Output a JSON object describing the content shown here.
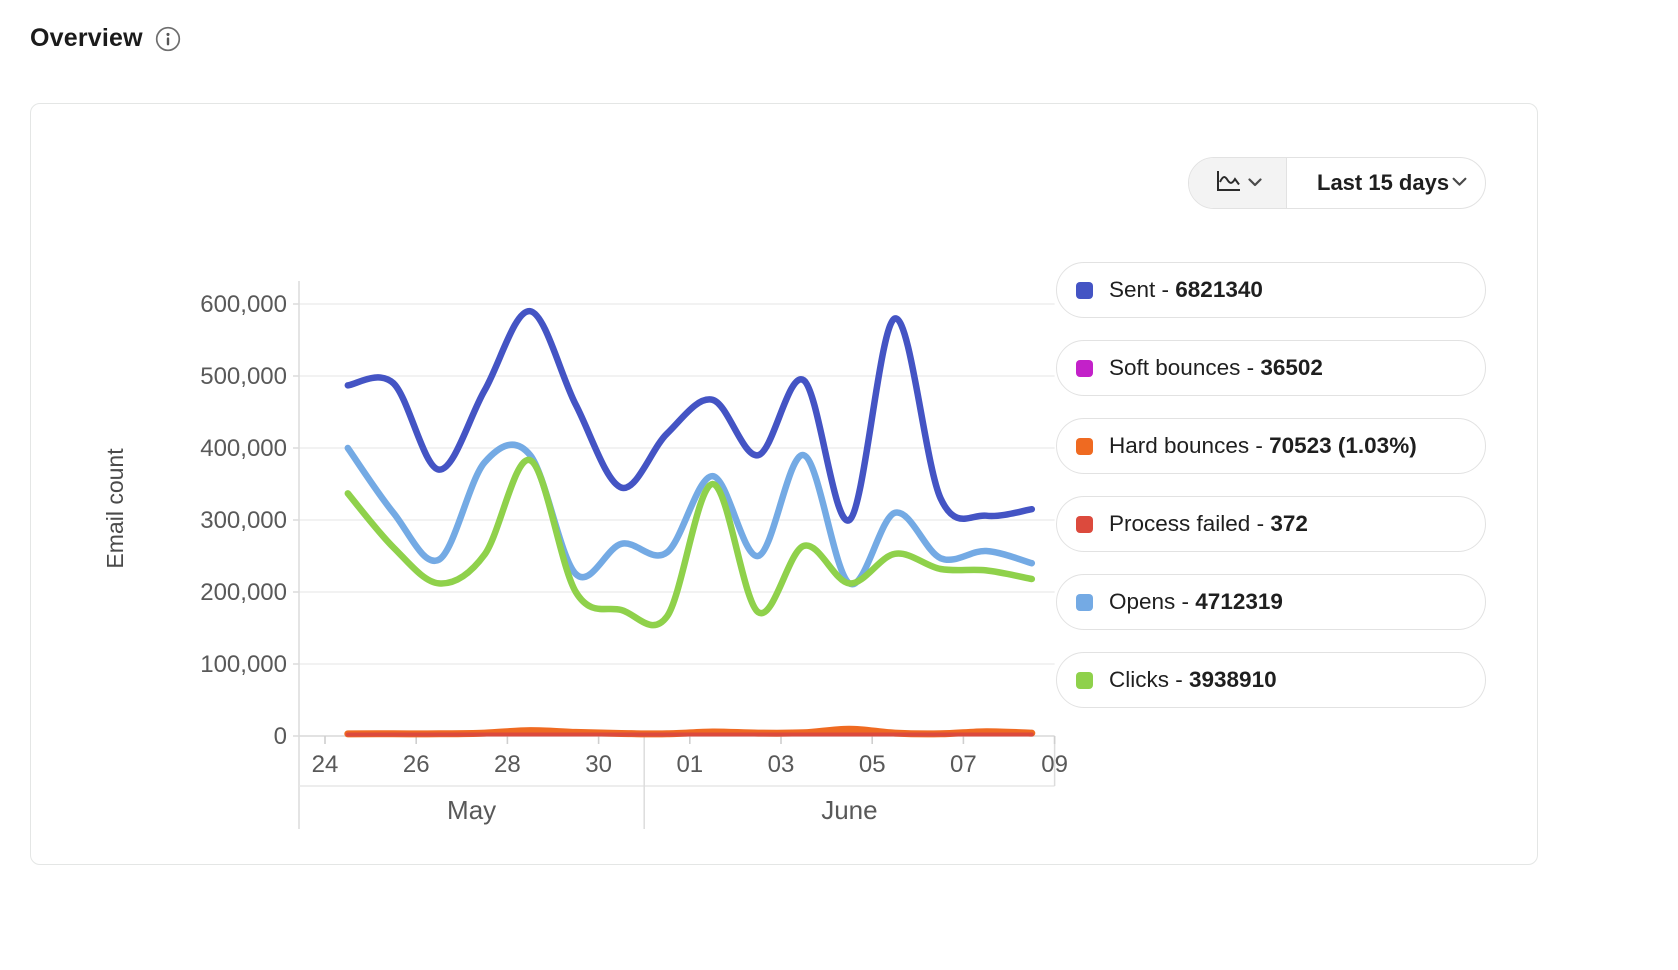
{
  "header": {
    "title": "Overview",
    "info_icon": "info-circle"
  },
  "controls": {
    "chart_type_icon": "line-chart",
    "chart_type_expand_icon": "chevron-down",
    "period_label": "Last 15 days",
    "period_expand_icon": "chevron-down"
  },
  "legend": [
    {
      "label": "Sent",
      "value": "6821340",
      "color": "#4454c4"
    },
    {
      "label": "Soft bounces",
      "value": "36502",
      "color": "#c321c9"
    },
    {
      "label": "Hard bounces",
      "value": "70523 (1.03%)",
      "color": "#ef6a21"
    },
    {
      "label": "Process failed",
      "value": "372",
      "color": "#dc4a3d"
    },
    {
      "label": "Opens",
      "value": "4712319",
      "color": "#74aae4"
    },
    {
      "label": "Clicks",
      "value": "3938910",
      "color": "#8fd14b"
    }
  ],
  "chart_data": {
    "type": "line",
    "title": "",
    "ylabel": "Email count",
    "xlabel": "",
    "ylim": [
      0,
      600000
    ],
    "grid": "horizontal",
    "legend_position": "right",
    "y_tick_labels": [
      "0",
      "100,000",
      "200,000",
      "300,000",
      "400,000",
      "500,000",
      "600,000"
    ],
    "x": [
      "May 24",
      "May 25",
      "May 26",
      "May 27",
      "May 28",
      "May 29",
      "May 30",
      "May 31",
      "Jun 1",
      "Jun 2",
      "Jun 3",
      "Jun 4",
      "Jun 5",
      "Jun 6",
      "Jun 7",
      "Jun 8"
    ],
    "x_tick_labels": [
      "24",
      "26",
      "28",
      "30",
      "01",
      "03",
      "05",
      "07",
      "09"
    ],
    "months": [
      "May",
      "June"
    ],
    "month_separator_day_index": 7,
    "series": [
      {
        "name": "Sent",
        "color": "#4454c4",
        "total": 6821340,
        "values": [
          487000,
          490000,
          370000,
          480000,
          590000,
          460000,
          345000,
          420000,
          467000,
          390000,
          494000,
          300000,
          580000,
          330000,
          306000,
          315000
        ]
      },
      {
        "name": "Soft bounces",
        "color": "#c321c9",
        "total": 36502,
        "values": [
          2500,
          2600,
          2300,
          2400,
          2500,
          2300,
          2200,
          2300,
          2400,
          2300,
          2500,
          2400,
          2300,
          2200,
          2400,
          2400
        ]
      },
      {
        "name": "Hard bounces",
        "color": "#ef6a21",
        "total": 70523,
        "values": [
          3000,
          3000,
          3000,
          4000,
          7500,
          5000,
          3500,
          3000,
          5500,
          4000,
          4500,
          9500,
          4000,
          3000,
          6000,
          4000
        ]
      },
      {
        "name": "Process failed",
        "color": "#dc4a3d",
        "total": 372,
        "values": [
          25,
          24,
          25,
          26,
          25,
          24,
          23,
          24,
          25,
          24,
          26,
          25,
          24,
          23,
          25,
          24
        ]
      },
      {
        "name": "Opens",
        "color": "#74aae4",
        "total": 4712319,
        "values": [
          400000,
          310000,
          245000,
          380000,
          390000,
          225000,
          267000,
          255000,
          361000,
          250000,
          390000,
          212000,
          310000,
          247000,
          257000,
          240000
        ]
      },
      {
        "name": "Clicks",
        "color": "#8fd14b",
        "total": 3938910,
        "values": [
          337000,
          262000,
          212000,
          252000,
          383000,
          200000,
          175000,
          166000,
          350000,
          172000,
          264000,
          212000,
          253000,
          232000,
          230000,
          218000
        ]
      }
    ]
  }
}
